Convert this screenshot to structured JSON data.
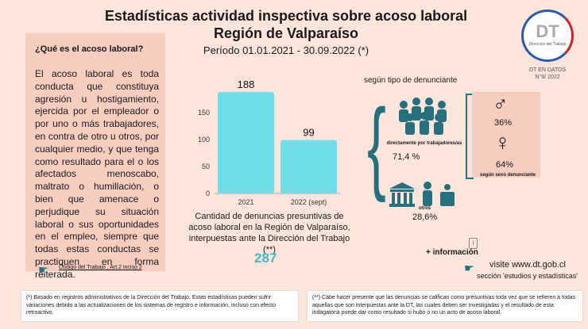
{
  "header": {
    "title": "Estadísticas actividad inspectiva sobre acoso laboral",
    "subtitle": "Región de Valparaíso",
    "period": "Período 01.01.2021 - 30.09.2022 (*)"
  },
  "definition": {
    "question": "¿Qué es el acoso laboral?",
    "body": "El acoso laboral es toda conducta que constituya agresión u hostigamiento, ejercida por el empleador o por uno o más trabajadores, en contra de otro u otros, por cualquier medio, y que tenga como resultado para el o los afectados menoscabo, maltrato o humillación, o bien que amenace o perjudique su situación laboral o sus oportunidades en el empleo, siempre que todas estas conductas se practiquen en forma reiterada.",
    "law_link": "Código  del Trabajo , Art.2 inciso 2"
  },
  "chart_data": {
    "type": "bar",
    "categories": [
      "2021",
      "2022 (sept)"
    ],
    "values": [
      188,
      99
    ],
    "ylim": [
      0,
      200
    ],
    "yticks": [
      0,
      50,
      100,
      150
    ],
    "bar_color": "#6fdde8",
    "caption": "Cantidad de denuncias presuntivas de acoso laboral en la Región de Valparaíso, interpuestas ante la Dirección del Trabajo (**)",
    "total": "287"
  },
  "denunciante": {
    "heading": "según tipo de denunciante",
    "direct_label": "directamente por trabajadores/as",
    "direct_pct": "71,4 %",
    "other_label": "otros",
    "other_pct": "28,6%"
  },
  "sex": {
    "male_symbol": "♂",
    "male_pct": "36%",
    "female_symbol": "♀",
    "female_pct": "64%",
    "label": "según sexo denunciante"
  },
  "links": {
    "more_info": "+ información",
    "visit": "visite www.dt.gob.cl",
    "section": "sección 'estudios y estadísticas'"
  },
  "logo": {
    "letters": "DT",
    "name": "Dirección del Trabajo",
    "series": "DT EN DATOS",
    "number": "N°8/ 2022"
  },
  "footnotes": {
    "f1": "(*) Basado en registros administrativos de la Dirección del Trabajo. Estas estadísticas pueden sufrir variaciones debido a las actualizaciones de los sistemas de registro e información, incluso con efecto retroactivo.",
    "f2": "(**) Cabe hacer presente que las denuncias se califican como presuntivas toda vez que se refieren a todas aquellas que son interpuestas ante la DT, las cuales deben ser investigadas y el resultado de esta indagatoria puede dar como resultado si hubo o no un acto de acoso laboral."
  },
  "icons": [
    "hand-pointer-icon",
    "workers-group-icon",
    "courthouse-icon",
    "person-icon",
    "male-icon",
    "female-icon",
    "info-icon"
  ]
}
